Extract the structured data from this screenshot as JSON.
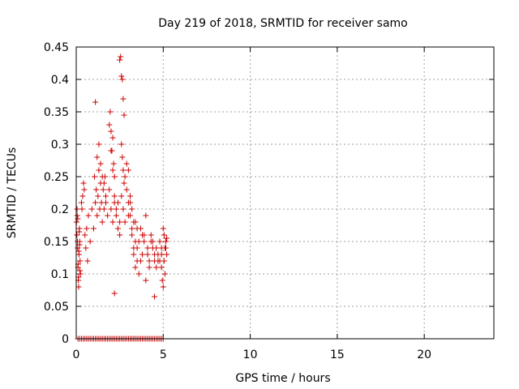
{
  "chart_data": {
    "type": "scatter",
    "title": "Day 219 of 2018, SRMTID for receiver samo",
    "xlabel": "GPS time / hours",
    "ylabel": "SRMTID / TECUs",
    "xlim": [
      0,
      24
    ],
    "ylim": [
      0,
      0.45
    ],
    "x_ticks": [
      0,
      5,
      10,
      15,
      20
    ],
    "x_tick_labels": [
      "0",
      "5",
      "10",
      "15",
      "20"
    ],
    "y_ticks": [
      0,
      0.05,
      0.1,
      0.15,
      0.2,
      0.25,
      0.3,
      0.35,
      0.4,
      0.45
    ],
    "y_tick_labels": [
      "0",
      "0.05",
      "0.1",
      "0.15",
      "0.2",
      "0.25",
      "0.3",
      "0.35",
      "0.4",
      "0.45"
    ],
    "grid": true,
    "marker": "+",
    "color": "#cc0000",
    "series": [
      {
        "x": [
          0.02,
          0.04,
          0.06,
          0.08,
          0.1,
          0.12,
          0.14,
          0.16,
          0.18,
          0.2,
          0.22,
          0.24,
          0.05,
          0.07,
          0.09,
          0.11,
          0.13,
          0.15,
          0.17,
          0.19,
          0.21,
          0.3,
          0.33,
          0.37,
          0.42,
          0.46,
          0.5,
          0.55,
          0.6,
          0.65,
          0.7,
          0.8,
          0.9,
          1.0,
          1.05,
          1.1,
          1.15,
          1.2,
          1.25,
          1.3,
          1.35,
          1.4,
          1.45,
          1.5,
          1.55,
          1.6,
          1.65,
          1.7,
          1.2,
          1.3,
          1.4,
          1.5,
          1.6,
          1.7,
          1.8,
          1.9,
          2.0,
          2.1,
          2.2,
          1.9,
          1.95,
          2.0,
          2.05,
          2.1,
          2.15,
          2.2,
          2.3,
          2.4,
          2.5,
          2.0,
          2.1,
          2.2,
          2.3,
          2.4,
          2.5,
          2.6,
          2.7,
          2.8,
          2.9,
          3.0,
          3.1,
          3.2,
          2.5,
          2.55,
          2.6,
          2.65,
          2.7,
          2.75,
          2.6,
          2.65,
          2.7,
          2.75,
          2.8,
          2.9,
          3.0,
          3.1,
          3.2,
          3.3,
          3.4,
          3.5,
          3.0,
          3.1,
          3.2,
          3.3,
          3.4,
          3.5,
          3.6,
          3.7,
          3.8,
          3.9,
          4.0,
          4.1,
          4.2,
          3.3,
          3.4,
          3.5,
          3.6,
          3.7,
          3.8,
          3.9,
          4.0,
          4.1,
          4.2,
          4.3,
          4.4,
          4.5,
          4.6,
          4.7,
          4.8,
          4.9,
          4.3,
          4.4,
          4.5,
          4.6,
          4.7,
          4.8,
          4.9,
          5.0,
          5.05,
          5.1,
          5.15,
          5.2,
          4.9,
          4.95,
          5.0,
          5.05,
          5.1,
          5.15,
          5.2,
          4.5,
          2.2,
          1.1,
          0.1,
          0.2,
          0.3,
          0.4,
          0.5,
          0.6,
          0.7,
          0.8,
          0.9,
          1.0,
          1.1,
          1.2,
          1.3,
          1.4,
          1.5,
          1.6,
          1.7,
          1.8,
          1.9,
          2.0,
          2.1,
          2.2,
          2.3,
          2.4,
          2.5,
          2.6,
          2.7,
          2.8,
          2.9,
          3.0,
          3.1,
          3.2,
          3.3,
          3.4,
          3.5,
          3.6,
          3.7,
          3.8,
          3.9,
          4.0,
          4.1,
          4.2,
          4.3,
          4.4,
          4.5,
          4.6,
          4.7,
          4.8,
          4.9,
          5.0
        ],
        "y": [
          0.18,
          0.16,
          0.19,
          0.14,
          0.11,
          0.09,
          0.08,
          0.13,
          0.17,
          0.15,
          0.12,
          0.1,
          0.2,
          0.15,
          0.185,
          0.115,
          0.095,
          0.135,
          0.165,
          0.145,
          0.105,
          0.21,
          0.2,
          0.22,
          0.24,
          0.23,
          0.16,
          0.14,
          0.17,
          0.12,
          0.19,
          0.15,
          0.2,
          0.17,
          0.25,
          0.21,
          0.23,
          0.19,
          0.22,
          0.26,
          0.2,
          0.24,
          0.21,
          0.18,
          0.23,
          0.2,
          0.25,
          0.22,
          0.28,
          0.3,
          0.27,
          0.25,
          0.24,
          0.21,
          0.19,
          0.23,
          0.29,
          0.26,
          0.22,
          0.33,
          0.35,
          0.32,
          0.29,
          0.31,
          0.27,
          0.25,
          0.2,
          0.21,
          0.18,
          0.2,
          0.18,
          0.21,
          0.19,
          0.17,
          0.16,
          0.22,
          0.2,
          0.18,
          0.23,
          0.21,
          0.19,
          0.17,
          0.43,
          0.435,
          0.405,
          0.4,
          0.37,
          0.345,
          0.3,
          0.28,
          0.26,
          0.24,
          0.25,
          0.27,
          0.26,
          0.22,
          0.2,
          0.18,
          0.15,
          0.17,
          0.19,
          0.21,
          0.16,
          0.14,
          0.18,
          0.12,
          0.15,
          0.17,
          0.13,
          0.16,
          0.19,
          0.14,
          0.12,
          0.13,
          0.11,
          0.14,
          0.1,
          0.12,
          0.16,
          0.15,
          0.09,
          0.13,
          0.11,
          0.15,
          0.14,
          0.12,
          0.11,
          0.13,
          0.12,
          0.14,
          0.16,
          0.15,
          0.13,
          0.14,
          0.12,
          0.15,
          0.13,
          0.17,
          0.16,
          0.14,
          0.15,
          0.13,
          0.11,
          0.09,
          0.08,
          0.12,
          0.1,
          0.14,
          0.155,
          0.065,
          0.07,
          0.365,
          0,
          0,
          0,
          0,
          0,
          0,
          0,
          0,
          0,
          0,
          0,
          0,
          0,
          0,
          0,
          0,
          0,
          0,
          0,
          0,
          0,
          0,
          0,
          0,
          0,
          0,
          0,
          0,
          0,
          0,
          0,
          0,
          0,
          0,
          0,
          0,
          0,
          0,
          0,
          0,
          0,
          0,
          0,
          0,
          0,
          0,
          0,
          0,
          0,
          0
        ]
      }
    ]
  }
}
